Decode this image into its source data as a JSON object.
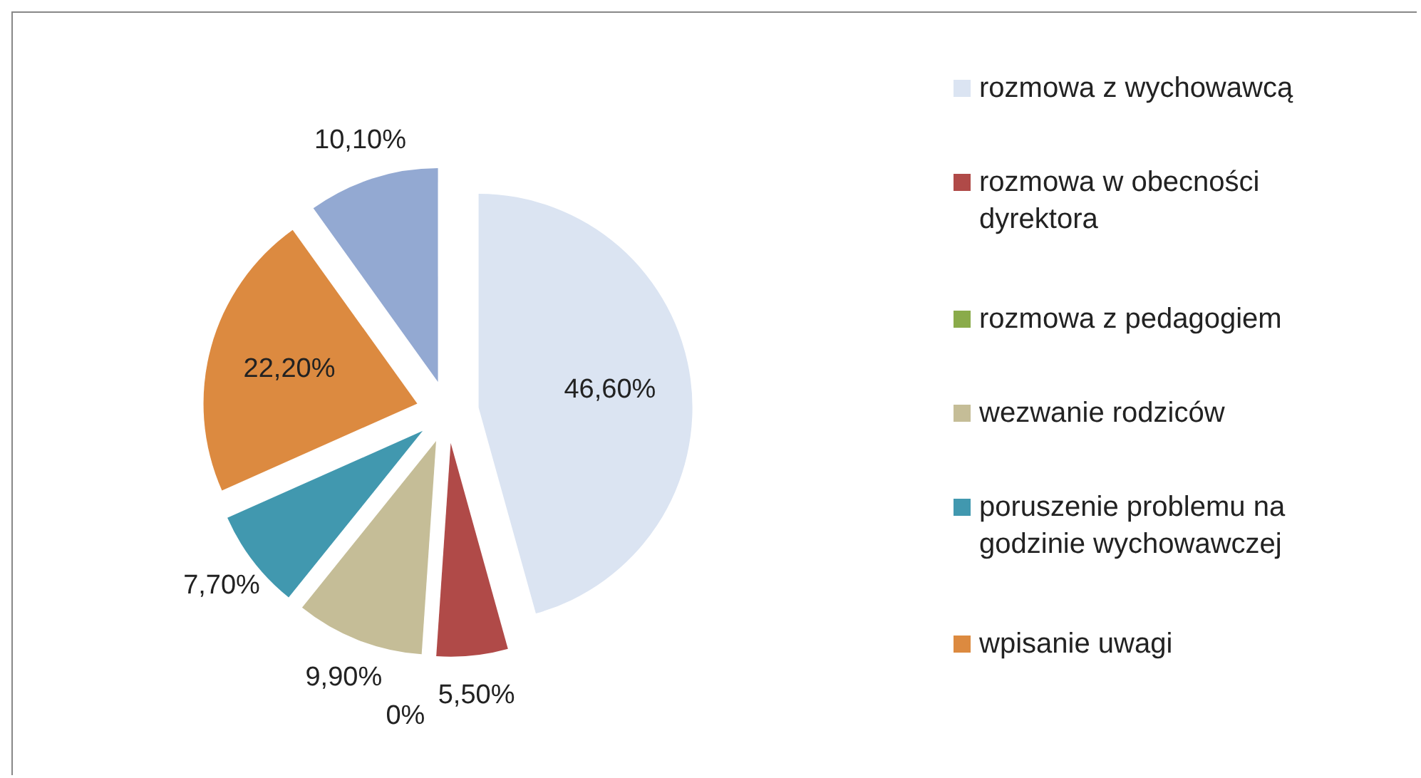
{
  "chart_data": {
    "type": "pie",
    "categories": [
      "rozmowa z wychowawcą",
      "rozmowa w obecności dyrektora",
      "rozmowa z pedagogiem",
      "wezwanie rodziców",
      "poruszenie problemu na godzinie wychowawczej",
      "wpisanie uwagi",
      null
    ],
    "values": [
      46.6,
      5.5,
      0,
      9.9,
      7.7,
      22.2,
      10.1
    ],
    "colors": [
      "#dbe4f2",
      "#b04a48",
      "#8aab4a",
      "#c5bd97",
      "#4198af",
      "#dc8a40",
      "#93a9d2"
    ],
    "value_labels": [
      "46,60%",
      "5,50%",
      "0%",
      "9,90%",
      "7,70%",
      "22,20%",
      "10,10%"
    ],
    "legend": "right"
  }
}
